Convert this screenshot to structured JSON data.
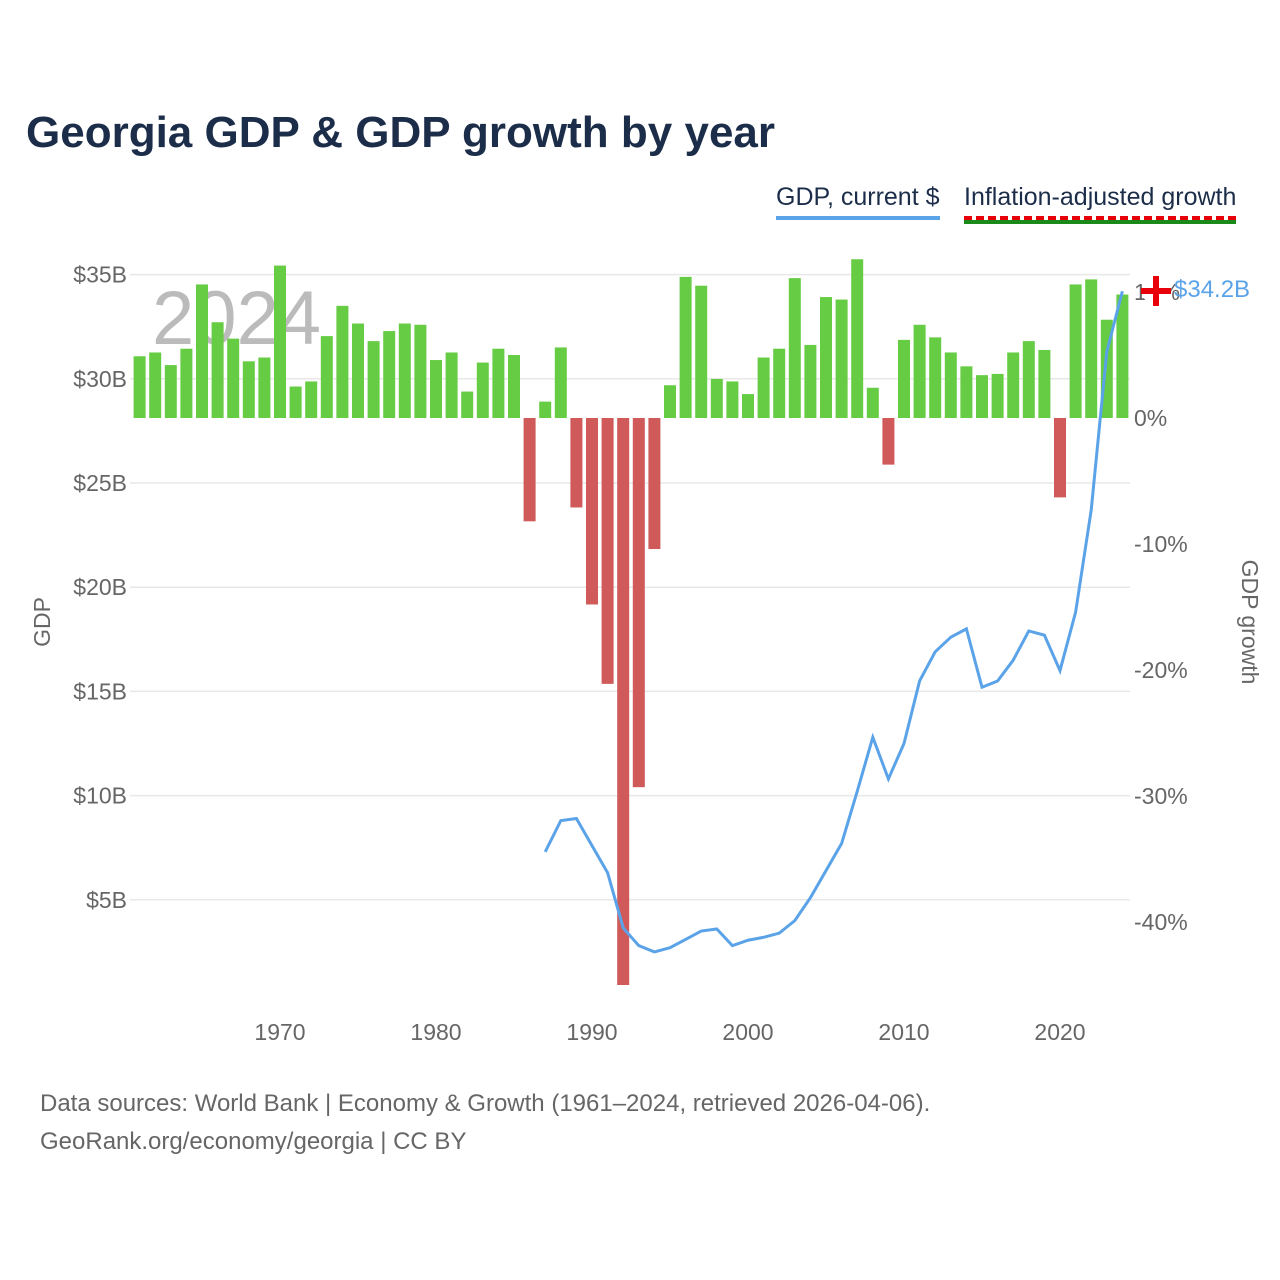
{
  "chart_data": {
    "type": "bar+line",
    "title": "Georgia GDP & GDP growth by year",
    "legend": [
      "GDP, current $",
      "Inflation-adjusted growth"
    ],
    "legend_placement": "top-right",
    "watermark_year": "2024",
    "ylabel_left": "GDP",
    "ylabel_right": "GDP growth",
    "left_ticks": [
      "$5B",
      "$10B",
      "$15B",
      "$20B",
      "$25B",
      "$30B",
      "$35B"
    ],
    "left_tick_values": [
      5,
      10,
      15,
      20,
      25,
      30,
      35
    ],
    "right_ticks": [
      "10%",
      "0%",
      "-10%",
      "-20%",
      "-30%",
      "-40%"
    ],
    "right_tick_values": [
      10,
      0,
      -10,
      -20,
      -30,
      -40
    ],
    "x_ticks": [
      "1970",
      "1980",
      "1990",
      "2000",
      "2010",
      "2020"
    ],
    "ylim_left": [
      0,
      36
    ],
    "ylim_right": [
      -45.5,
      11
    ],
    "years_growth": [
      1961,
      2024
    ],
    "growth": [
      4.9,
      5.2,
      4.2,
      5.5,
      10.6,
      7.6,
      6.3,
      4.5,
      4.8,
      12.1,
      2.5,
      2.9,
      6.5,
      8.9,
      7.5,
      6.1,
      6.9,
      7.5,
      7.4,
      4.6,
      5.2,
      2.1,
      4.4,
      5.5,
      5.0,
      -8.2,
      1.3,
      5.6,
      -7.1,
      -14.8,
      -21.1,
      -45.0,
      -29.3,
      -10.4,
      2.6,
      11.2,
      10.5,
      3.1,
      2.9,
      1.9,
      4.8,
      5.5,
      11.1,
      5.8,
      9.6,
      9.4,
      12.6,
      2.4,
      -3.7,
      6.2,
      7.4,
      6.4,
      5.2,
      4.1,
      3.4,
      3.5,
      5.2,
      6.1,
      5.4,
      -6.3,
      10.6,
      11.0,
      7.8,
      9.8
    ],
    "years_gdp": [
      1987,
      2024
    ],
    "gdp": [
      7.3,
      8.8,
      8.9,
      7.6,
      6.3,
      3.65,
      2.8,
      2.5,
      2.7,
      3.1,
      3.5,
      3.6,
      2.8,
      3.06,
      3.2,
      3.4,
      4.0,
      5.1,
      6.4,
      7.7,
      10.2,
      12.8,
      10.8,
      12.5,
      15.5,
      16.9,
      17.6,
      18.0,
      15.2,
      15.5,
      16.5,
      17.9,
      17.7,
      16.0,
      18.8,
      23.7,
      31.3,
      34.2
    ],
    "end_label": "$34.2B",
    "colors": {
      "positive": "#66cc44",
      "negative": "#d05a5a",
      "line": "#5ba3e8",
      "title": "#1c2d4a"
    }
  },
  "footer": {
    "line1": "Data sources: World Bank | Economy & Growth (1961–2024, retrieved 2026-04-06).",
    "line2": "GeoRank.org/economy/georgia | CC BY"
  }
}
